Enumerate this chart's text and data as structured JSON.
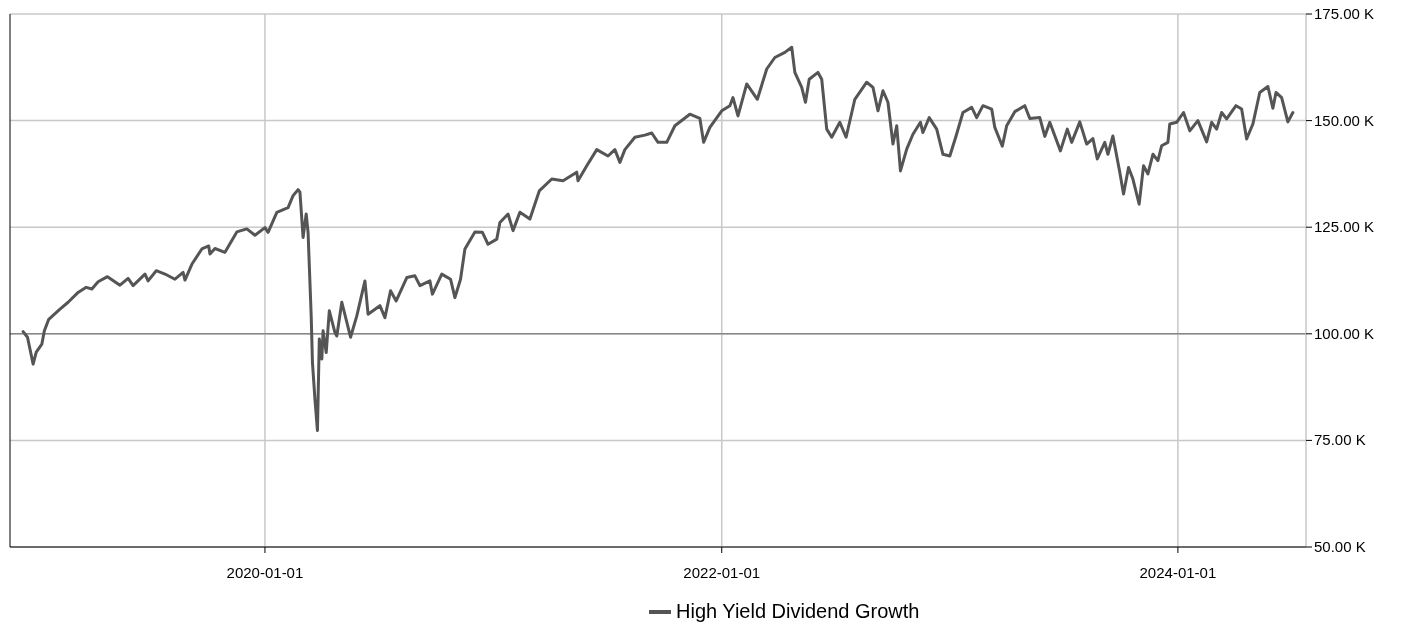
{
  "chart_data": {
    "type": "line",
    "x": [
      "2018-12-10",
      "2018-12-17",
      "2018-12-26",
      "2018-12-31",
      "2019-01-09",
      "2019-01-13",
      "2019-01-20",
      "2019-02-07",
      "2019-02-20",
      "2019-03-08",
      "2019-03-21",
      "2019-03-30",
      "2019-04-09",
      "2019-04-24",
      "2019-05-14",
      "2019-05-27",
      "2019-06-04",
      "2019-06-23",
      "2019-06-28",
      "2019-07-11",
      "2019-07-28",
      "2019-08-10",
      "2019-08-23",
      "2019-08-26",
      "2019-09-06",
      "2019-09-22",
      "2019-10-03",
      "2019-10-05",
      "2019-10-13",
      "2019-10-29",
      "2019-11-17",
      "2019-12-03",
      "2019-12-16",
      "2020-01-01",
      "2020-01-06",
      "2020-01-20",
      "2020-02-07",
      "2020-02-15",
      "2020-02-23",
      "2020-02-26",
      "2020-03-02",
      "2020-03-07",
      "2020-03-10",
      "2020-03-15",
      "2020-03-17",
      "2020-03-21",
      "2020-03-25",
      "2020-03-28",
      "2020-04-01",
      "2020-04-03",
      "2020-04-08",
      "2020-04-13",
      "2020-04-22",
      "2020-04-25",
      "2020-05-03",
      "2020-05-17",
      "2020-05-27",
      "2020-06-09",
      "2020-06-14",
      "2020-07-03",
      "2020-07-11",
      "2020-07-20",
      "2020-07-29",
      "2020-08-15",
      "2020-08-28",
      "2020-09-05",
      "2020-09-21",
      "2020-09-25",
      "2020-10-10",
      "2020-10-24",
      "2020-10-31",
      "2020-11-09",
      "2020-11-16",
      "2020-12-02",
      "2020-12-14",
      "2020-12-23",
      "2021-01-06",
      "2021-01-11",
      "2021-01-24",
      "2021-02-01",
      "2021-02-12",
      "2021-02-28",
      "2021-03-15",
      "2021-04-04",
      "2021-04-22",
      "2021-05-14",
      "2021-05-16",
      "2021-05-30",
      "2021-06-15",
      "2021-07-03",
      "2021-07-14",
      "2021-07-22",
      "2021-07-30",
      "2021-08-15",
      "2021-08-31",
      "2021-09-11",
      "2021-09-21",
      "2021-10-05",
      "2021-10-18",
      "2021-11-11",
      "2021-11-27",
      "2021-12-03",
      "2021-12-13",
      "2022-01-01",
      "2022-01-14",
      "2022-01-19",
      "2022-01-27",
      "2022-02-10",
      "2022-02-27",
      "2022-03-14",
      "2022-03-27",
      "2022-04-12",
      "2022-04-23",
      "2022-04-28",
      "2022-05-09",
      "2022-05-15",
      "2022-05-21",
      "2022-06-04",
      "2022-06-10",
      "2022-06-18",
      "2022-06-26",
      "2022-07-09",
      "2022-07-19",
      "2022-08-02",
      "2022-08-21",
      "2022-08-31",
      "2022-09-08",
      "2022-09-16",
      "2022-09-24",
      "2022-10-02",
      "2022-10-08",
      "2022-10-14",
      "2022-10-24",
      "2022-11-03",
      "2022-11-15",
      "2022-11-19",
      "2022-11-29",
      "2022-12-11",
      "2022-12-21",
      "2023-01-01",
      "2023-01-11",
      "2023-01-22",
      "2023-02-05",
      "2023-02-13",
      "2023-02-23",
      "2023-03-09",
      "2023-03-14",
      "2023-03-26",
      "2023-04-02",
      "2023-04-15",
      "2023-05-01",
      "2023-05-09",
      "2023-05-25",
      "2023-06-02",
      "2023-06-10",
      "2023-06-27",
      "2023-07-08",
      "2023-07-15",
      "2023-07-28",
      "2023-08-08",
      "2023-08-18",
      "2023-08-25",
      "2023-09-06",
      "2023-09-11",
      "2023-09-19",
      "2023-09-30",
      "2023-10-06",
      "2023-10-14",
      "2023-10-21",
      "2023-10-31",
      "2023-11-07",
      "2023-11-14",
      "2023-11-22",
      "2023-11-30",
      "2023-12-06",
      "2023-12-16",
      "2023-12-19",
      "2023-12-30",
      "2024-01-10",
      "2024-01-20",
      "2024-02-02",
      "2024-02-16",
      "2024-02-24",
      "2024-03-03",
      "2024-03-11",
      "2024-03-19",
      "2024-04-03",
      "2024-04-12",
      "2024-04-20",
      "2024-04-30",
      "2024-05-11",
      "2024-05-24",
      "2024-06-01",
      "2024-06-06",
      "2024-06-15",
      "2024-06-25",
      "2024-07-03"
    ],
    "series": [
      {
        "name": "High Yield Dividend Growth",
        "color": "#555555",
        "values": [
          100500,
          99200,
          92900,
          95700,
          97600,
          100700,
          103400,
          105800,
          107400,
          109700,
          110900,
          110500,
          112200,
          113400,
          111400,
          113000,
          111300,
          114000,
          112400,
          114800,
          113800,
          112800,
          114400,
          112600,
          116300,
          119900,
          120600,
          118700,
          120000,
          119100,
          123900,
          124600,
          123100,
          124900,
          123800,
          128500,
          129600,
          132400,
          133800,
          133200,
          122600,
          128100,
          123800,
          104200,
          93300,
          84700,
          77300,
          98800,
          94100,
          100700,
          95600,
          105400,
          100300,
          99500,
          107400,
          99200,
          104200,
          112400,
          104600,
          106600,
          103800,
          110100,
          107700,
          113200,
          113600,
          111300,
          112400,
          109300,
          114000,
          112800,
          108500,
          112800,
          119900,
          123900,
          123800,
          121000,
          122200,
          126100,
          128100,
          124200,
          128500,
          126900,
          133500,
          136300,
          135900,
          137900,
          135900,
          139400,
          143200,
          141700,
          143200,
          140200,
          143200,
          146100,
          146600,
          147100,
          144900,
          144900,
          148800,
          151500,
          150500,
          144900,
          148400,
          152300,
          153500,
          155400,
          151100,
          158600,
          155000,
          162100,
          164800,
          166000,
          167200,
          161300,
          157800,
          154300,
          159700,
          161300,
          159700,
          148000,
          146100,
          149600,
          146100,
          155000,
          159000,
          157800,
          152300,
          157000,
          154300,
          144500,
          148800,
          138200,
          143300,
          146800,
          149600,
          147200,
          150700,
          148000,
          142100,
          141700,
          146400,
          151900,
          153100,
          150700,
          153500,
          152700,
          148400,
          144000,
          148800,
          152100,
          153500,
          150500,
          150700,
          146300,
          149600,
          142900,
          148000,
          144900,
          149700,
          144500,
          145800,
          141000,
          144900,
          142100,
          146400,
          137900,
          132800,
          139000,
          136300,
          130400,
          139400,
          137500,
          142100,
          140600,
          144100,
          144900,
          149200,
          149600,
          151900,
          147600,
          150000,
          145000,
          149600,
          148000,
          151900,
          150400,
          153500,
          152700,
          145700,
          149200,
          156600,
          158000,
          152900,
          156600,
          155400,
          149700,
          151900
        ]
      }
    ],
    "xlim": [
      "2018-11-19",
      "2024-07-24"
    ],
    "xticks": [
      {
        "value": "2020-01-01",
        "label": "2020-01-01"
      },
      {
        "value": "2022-01-01",
        "label": "2022-01-01"
      },
      {
        "value": "2024-01-01",
        "label": "2024-01-01"
      }
    ],
    "ylim": [
      50000,
      175000
    ],
    "yticks": [
      {
        "value": 50000,
        "label": "50.00 K"
      },
      {
        "value": 75000,
        "label": "75.00 K"
      },
      {
        "value": 100000,
        "label": "100.00 K"
      },
      {
        "value": 125000,
        "label": "125.00 K"
      },
      {
        "value": 150000,
        "label": "150.00 K"
      },
      {
        "value": 175000,
        "label": "175.00 K"
      }
    ],
    "ref_lines": [
      {
        "axis": "y",
        "value": 100000,
        "color": "#888888"
      }
    ],
    "grid": true,
    "legend": "bottom",
    "line_style": "solid"
  }
}
